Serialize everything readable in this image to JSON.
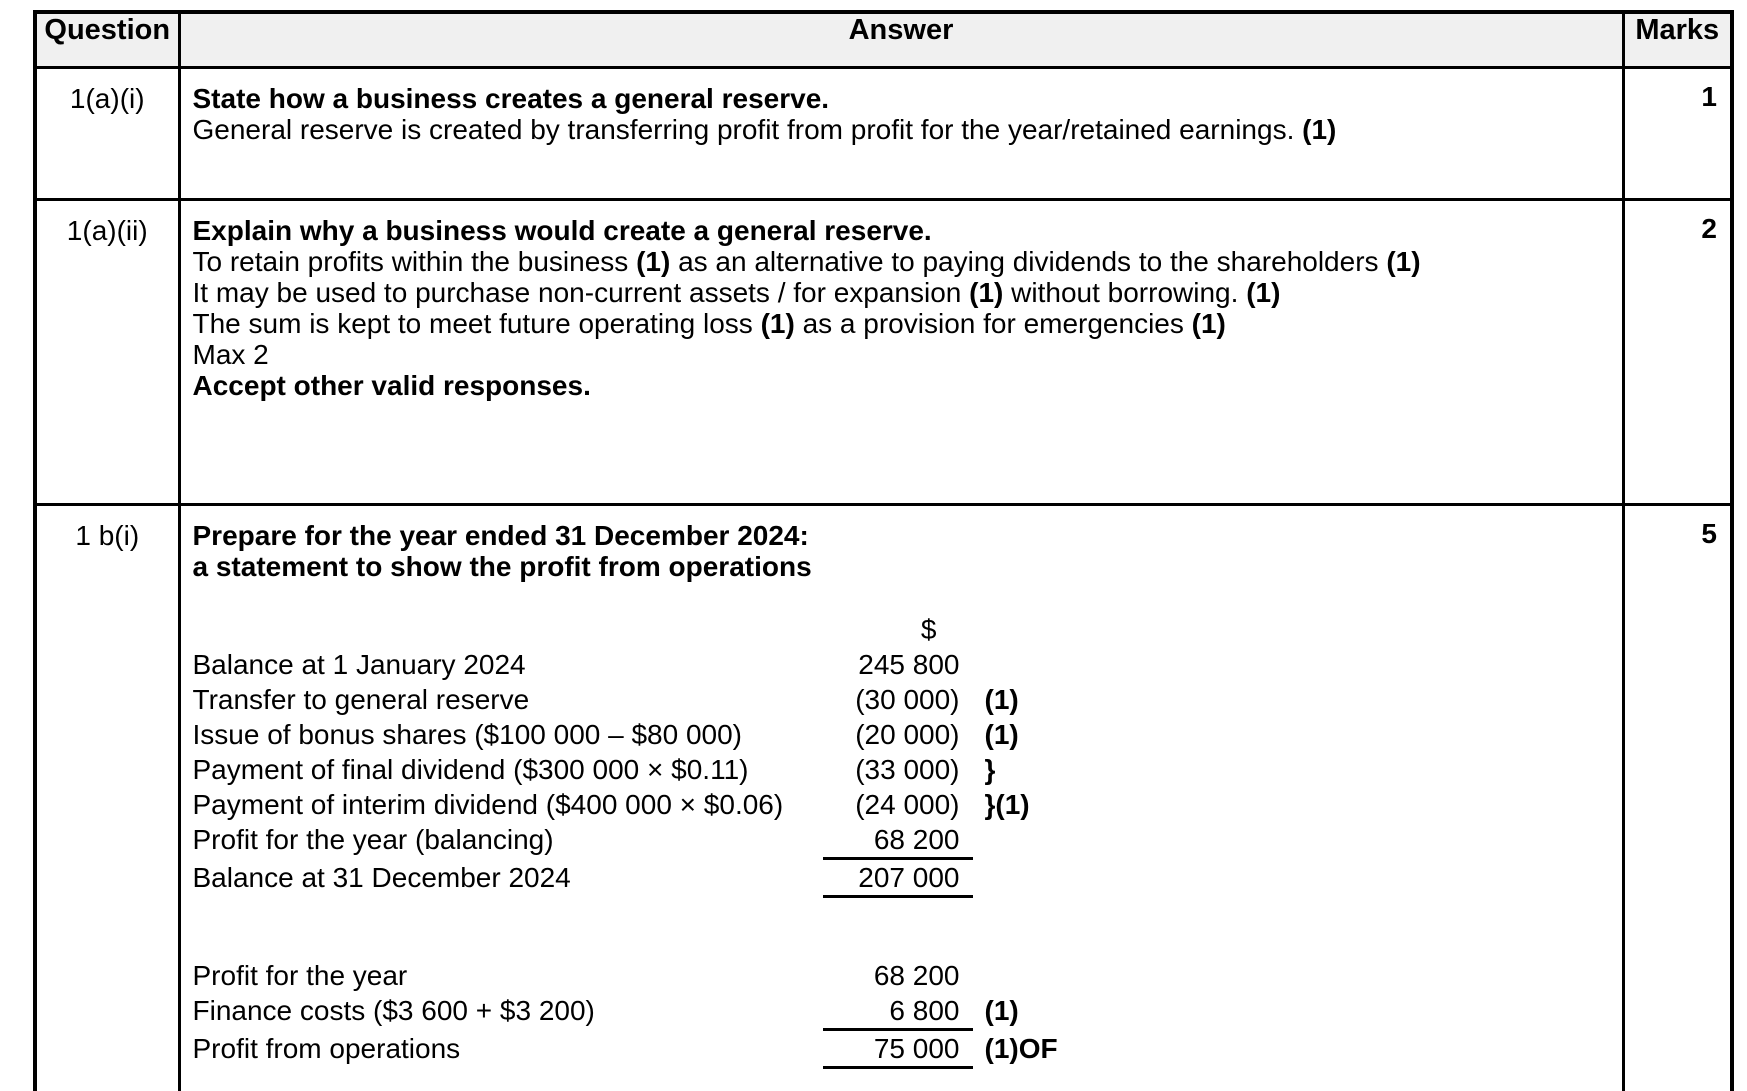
{
  "table": {
    "header": {
      "question": "Question",
      "answer": "Answer",
      "marks": "Marks",
      "bg_color": "#f0f0f0",
      "border_color": "#000000"
    },
    "rows": [
      {
        "question": "1(a)(i)",
        "marks": "1",
        "heading": "State how a business creates a general reserve.",
        "body": [
          {
            "t": "General reserve is created by transferring profit from profit for the year/retained earnings. "
          },
          {
            "t": "(1)",
            "b": true
          }
        ]
      },
      {
        "question": "1(a)(ii)",
        "marks": "2",
        "heading": "Explain why a business would create a general reserve.",
        "lines": [
          [
            {
              "t": "To retain profits within the business "
            },
            {
              "t": "(1)",
              "b": true
            },
            {
              "t": " as an alternative to paying dividends to the shareholders "
            },
            {
              "t": "(1)",
              "b": true
            }
          ],
          [
            {
              "t": "It may be used to purchase non-current assets / for expansion "
            },
            {
              "t": "(1)",
              "b": true
            },
            {
              "t": " without borrowing. "
            },
            {
              "t": "(1)",
              "b": true
            }
          ],
          [
            {
              "t": "The sum is kept to meet future operating loss "
            },
            {
              "t": "(1)",
              "b": true
            },
            {
              "t": " as a provision for emergencies "
            },
            {
              "t": "(1)",
              "b": true
            }
          ]
        ],
        "max_note": "Max 2",
        "accept_note": "Accept other valid responses."
      },
      {
        "question": "1 b(i)",
        "marks": "5",
        "heading": "Prepare for the year ended 31 December 2024:",
        "subheading": "a statement to show the profit from operations",
        "currency": "$",
        "statement1": [
          {
            "label": "Balance at 1 January 2024",
            "value": "245 800",
            "note": "",
            "underline": false
          },
          {
            "label": "Transfer to general reserve",
            "value": "(30 000)",
            "note": "(1)",
            "underline": false
          },
          {
            "label": "Issue of bonus shares ($100 000 – $80 000)",
            "value": "(20 000)",
            "note": "(1)",
            "underline": false
          },
          {
            "label": "Payment of final dividend ($300 000 × $0.11)",
            "value": "(33 000)",
            "note": "}",
            "underline": false
          },
          {
            "label": "Payment of interim dividend ($400 000 × $0.06)",
            "value": "(24 000)",
            "note": "}(1)",
            "underline": false
          },
          {
            "label": "Profit for the year (balancing)",
            "value": "68 200",
            "note": "",
            "underline": true
          },
          {
            "label": "Balance at 31 December 2024",
            "value": "207 000",
            "note": "",
            "underline": true
          }
        ],
        "statement2": [
          {
            "label": "Profit for the year",
            "value": "68 200",
            "note": "",
            "underline": false
          },
          {
            "label": "Finance costs ($3 600 + $3 200)",
            "value": "6 800",
            "note": "(1)",
            "underline": true
          },
          {
            "label": "Profit from operations",
            "value": "75 000",
            "note": "(1)OF",
            "underline": true
          }
        ]
      }
    ]
  }
}
